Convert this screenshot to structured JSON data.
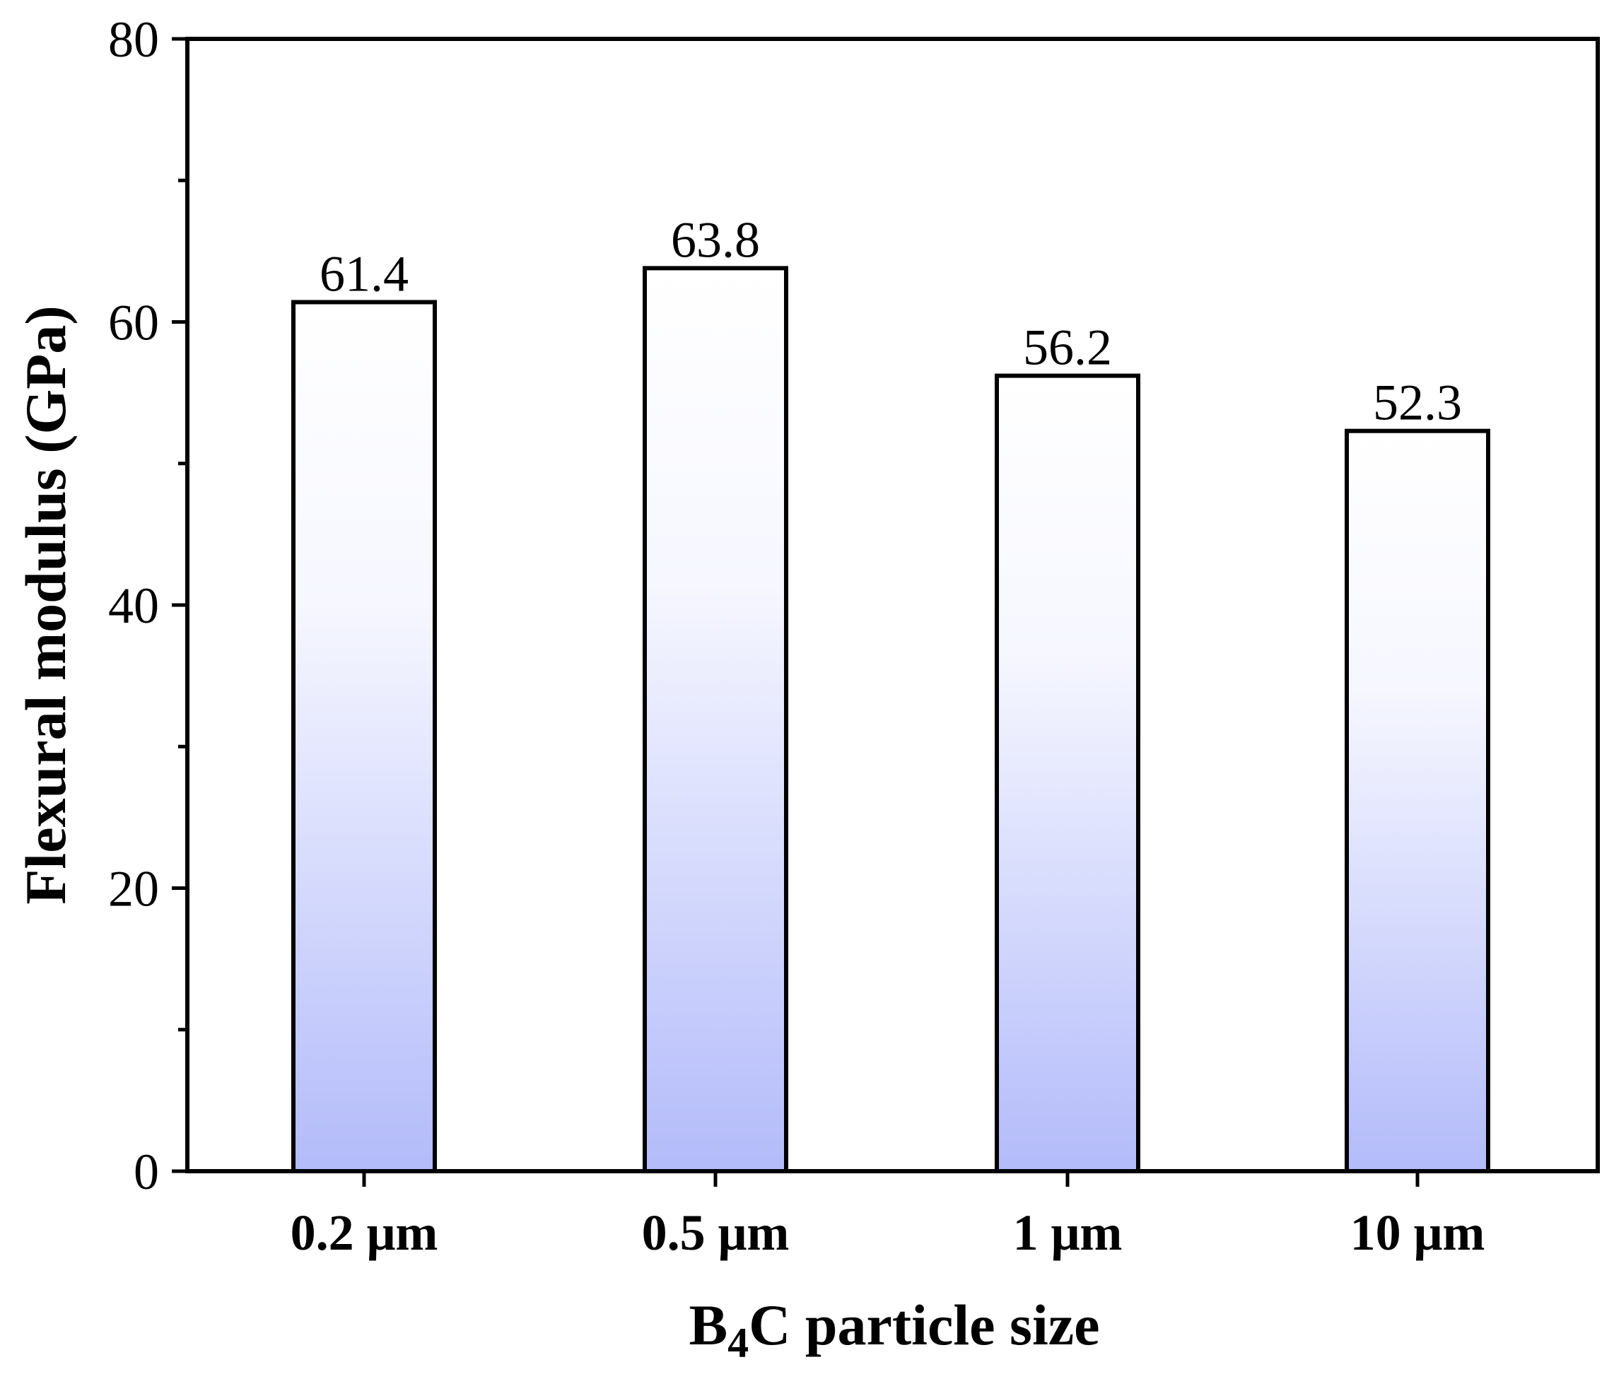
{
  "chart_data": {
    "type": "bar",
    "title": "",
    "categories": [
      "0.2 μm",
      "0.5 μm",
      "1 μm",
      "10 μm"
    ],
    "values": [
      61.4,
      63.8,
      56.2,
      52.3
    ],
    "data_labels": [
      "61.4",
      "63.8",
      "56.2",
      "52.3"
    ],
    "xlabel": {
      "main": "B",
      "subscript": "4",
      "rest": "C particle size"
    },
    "ylabel": "Flexural modulus (GPa)",
    "ylim": [
      0,
      80
    ],
    "yticks": [
      0,
      20,
      40,
      60,
      80
    ],
    "ytick_labels": [
      "0",
      "20",
      "40",
      "60",
      "80"
    ],
    "minor_ticks": [
      10,
      30,
      50,
      70
    ],
    "grid": false,
    "legend": "none",
    "colors": {
      "bar_top": "#ffffff",
      "bar_bottom": "#b3bbfa",
      "bar_edge": "#000000",
      "axis": "#000000"
    }
  }
}
